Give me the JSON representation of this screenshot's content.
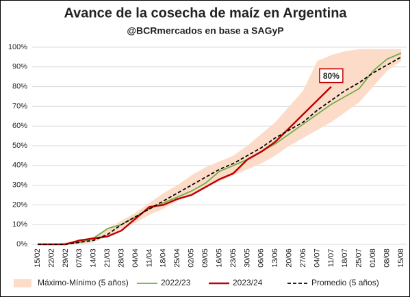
{
  "chart_data": {
    "type": "line",
    "title": "Avance de la cosecha de maíz en Argentina",
    "subtitle": "@BCRmercados en base a SAGyP",
    "categories": [
      "15/02",
      "22/02",
      "29/02",
      "07/03",
      "14/03",
      "21/03",
      "28/03",
      "04/04",
      "11/04",
      "18/04",
      "25/04",
      "02/05",
      "09/05",
      "16/05",
      "23/05",
      "30/05",
      "06/06",
      "13/06",
      "20/06",
      "27/06",
      "04/07",
      "11/07",
      "18/07",
      "25/07",
      "01/08",
      "08/08",
      "15/08"
    ],
    "ylim": [
      0,
      100
    ],
    "yticks": [
      {
        "value": 0,
        "label": "0%"
      },
      {
        "value": 10,
        "label": "10%"
      },
      {
        "value": 20,
        "label": "20%"
      },
      {
        "value": 30,
        "label": "30%"
      },
      {
        "value": 40,
        "label": "40%"
      },
      {
        "value": 50,
        "label": "50%"
      },
      {
        "value": 60,
        "label": "60%"
      },
      {
        "value": 70,
        "label": "70%"
      },
      {
        "value": 80,
        "label": "80%"
      },
      {
        "value": 90,
        "label": "90%"
      },
      {
        "value": 100,
        "label": "100%"
      }
    ],
    "grid": true,
    "legend": "bottom",
    "series": [
      {
        "name": "Máximo-Mínimo (5 años)",
        "type": "band",
        "color": "#fcdcc8",
        "values": [
          0,
          0,
          1,
          2,
          4,
          8,
          12,
          16,
          21,
          26,
          30,
          35,
          39,
          42,
          45,
          50,
          56,
          62,
          70,
          78,
          93,
          96,
          98,
          99,
          99,
          99,
          99
        ],
        "lower": [
          0,
          0,
          0,
          0,
          1,
          4,
          8,
          11,
          15,
          18,
          22,
          25,
          29,
          32,
          35,
          38,
          41,
          45,
          50,
          54,
          58,
          62,
          67,
          72,
          80,
          88,
          93
        ]
      },
      {
        "name": "2022/23",
        "color": "#70ad47",
        "values": [
          0,
          0,
          0,
          1,
          3,
          8,
          10,
          14,
          18,
          21,
          24,
          27,
          31,
          37,
          40,
          43,
          47,
          51,
          56,
          61,
          66,
          71,
          75,
          79,
          88,
          94,
          97
        ]
      },
      {
        "name": "2023/24",
        "color": "#c00000",
        "width": 2.5,
        "values": [
          0,
          0,
          0,
          2,
          3,
          4,
          7,
          13,
          19,
          20,
          23,
          25,
          29,
          33,
          36,
          43,
          47,
          52,
          59,
          66,
          73,
          80,
          null,
          null,
          null,
          null,
          null
        ],
        "value_labels": {
          "21": "80%"
        }
      },
      {
        "name": "Promedio (5 años)",
        "color": "#000000",
        "dash": true,
        "values": [
          0,
          0,
          0,
          1,
          2,
          5,
          10,
          14,
          18,
          22,
          26,
          30,
          34,
          38,
          41,
          45,
          49,
          54,
          58,
          62,
          68,
          73,
          78,
          82,
          87,
          91,
          95
        ]
      }
    ]
  }
}
